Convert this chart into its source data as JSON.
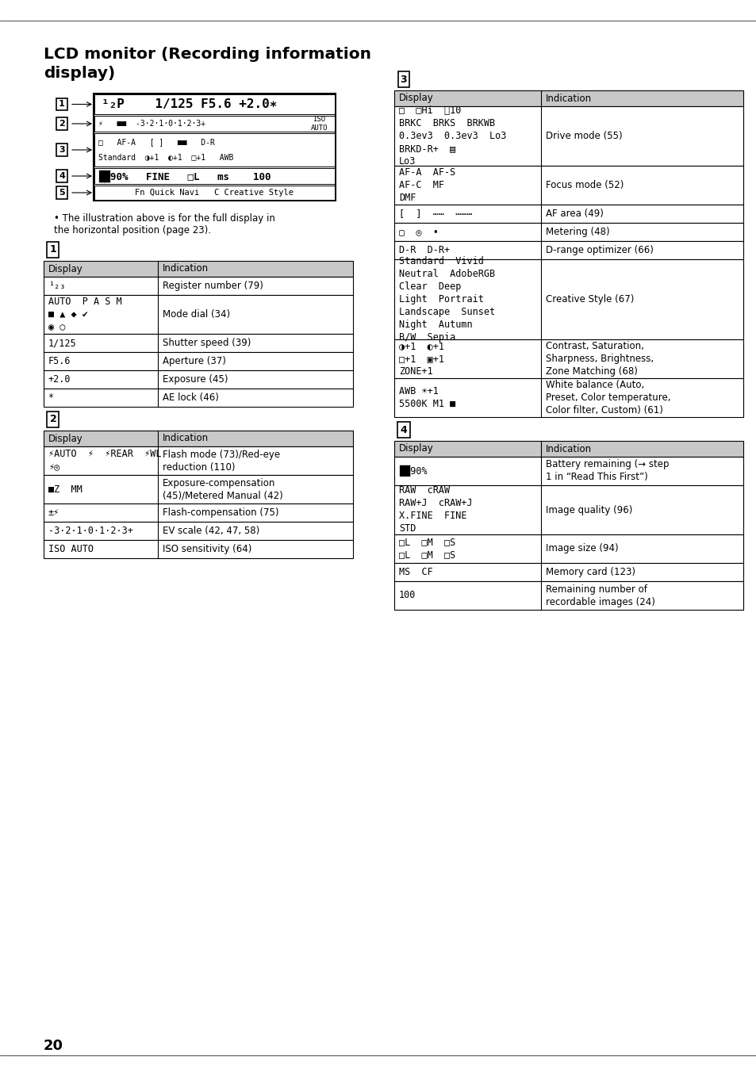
{
  "bg_color": "#ffffff",
  "hdr_bg": "#c8c8c8",
  "title_line1": "LCD monitor (Recording information",
  "title_line2": "display)",
  "page_number": "20",
  "note": "The illustration above is for the full display in\nthe horizontal position (page 23).",
  "t1_rows": [
    [
      "¹₂₃",
      "Register number (79)"
    ],
    [
      "AUTO  P A S M\n■ ▲ ◆ ✔\n◉ ○",
      "Mode dial (34)"
    ],
    [
      "1/125",
      "Shutter speed (39)"
    ],
    [
      "F5.6",
      "Aperture (37)"
    ],
    [
      "+2.0",
      "Exposure (45)"
    ],
    [
      "*",
      "AE lock (46)"
    ]
  ],
  "t2_rows": [
    [
      "⚡AUTO  ⚡  ⚡REAR  ⚡WL\n⚡◎",
      "Flash mode (73)/Red-eye\nreduction (110)"
    ],
    [
      "■Z  MM",
      "Exposure-compensation\n(45)/Metered Manual (42)"
    ],
    [
      "±⚡",
      "Flash-compensation (75)"
    ],
    [
      "-3·2·1·0·1·2·3+",
      "EV scale (42, 47, 58)"
    ],
    [
      "ISO AUTO",
      "ISO sensitivity (64)"
    ]
  ],
  "t3_rows": [
    [
      "□  □Hi  ⌛10\nBRKC  BRKS  BRKWB\n0.3ev3  0.3ev3  Lo3\nBRKD-R+  ▤\nLo3",
      "Drive mode (55)"
    ],
    [
      "AF-A  AF-S\nAF-C  MF\nDMF",
      "Focus mode (52)"
    ],
    [
      "[  ]  ⋯⋯  ⋯⋯⋯",
      "AF area (49)"
    ],
    [
      "▢  ◎  •",
      "Metering (48)"
    ],
    [
      "D-R  D-R+",
      "D-range optimizer (66)"
    ],
    [
      "Standard  Vivid\nNeutral  AdobeRGB\nClear  Deep\nLight  Portrait\nLandscape  Sunset\nNight  Autumn\nB/W  Sepia",
      "Creative Style (67)"
    ],
    [
      "◑+1  ◐+1\n□+1  ▣+1\nZONE+1",
      "Contrast, Saturation,\nSharpness, Brightness,\nZone Matching (68)"
    ],
    [
      "AWB ☀+1\n5500K M1 ■",
      "White balance (Auto,\nPreset, Color temperature,\nColor filter, Custom) (61)"
    ]
  ],
  "t4_rows": [
    [
      "██90%",
      "Battery remaining (→ step\n1 in “Read This First”)"
    ],
    [
      "RAW  cRAW\nRAW+J  cRAW+J\nX.FINE  FINE\nSTD",
      "Image quality (96)"
    ],
    [
      "□L  □M  □S\n□L  □M  □S",
      "Image size (94)"
    ],
    [
      "MS  CF",
      "Memory card (123)"
    ],
    [
      "100",
      "Remaining number of\nrecordable images (24)"
    ]
  ]
}
